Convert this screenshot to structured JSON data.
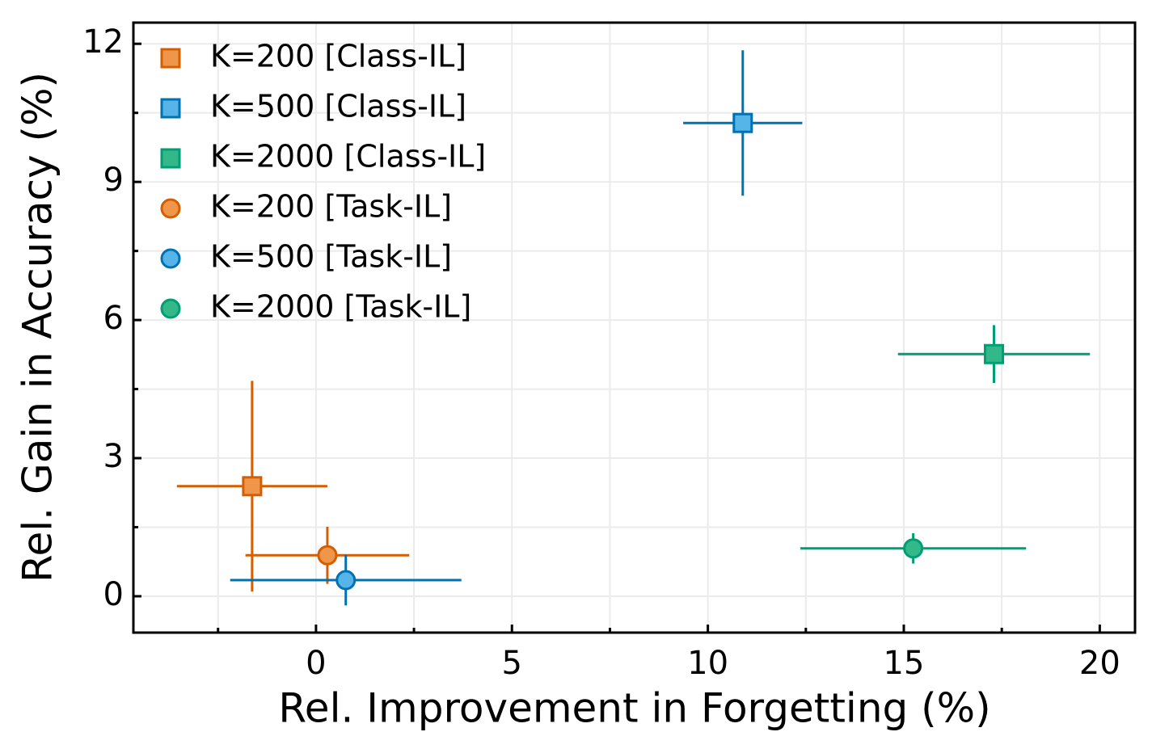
{
  "chart_data": {
    "type": "scatter",
    "x_label": "Rel. Improvement in Forgetting (%)",
    "y_label": "Rel. Gain in Accuracy (%)",
    "xlim": [
      -4.66,
      20.9
    ],
    "ylim": [
      -0.79,
      12.46
    ],
    "xticks": [
      0,
      5,
      10,
      15,
      20
    ],
    "yticks": [
      0,
      3,
      6,
      9,
      12
    ],
    "xminorticks": [
      -2.5,
      2.5,
      7.5,
      12.5,
      17.5
    ],
    "yminorticks": [
      1.5,
      4.5,
      7.5,
      10.5
    ],
    "grid": true,
    "legend": "upper left",
    "series": [
      {
        "name": "K=200 [Class-IL]",
        "color": "#d55e00",
        "fill": "#f0964b",
        "marker": "square",
        "x": [
          -1.63
        ],
        "values": [
          2.39
        ],
        "xerr": [
          1.92
        ],
        "yerr": [
          2.29
        ]
      },
      {
        "name": "K=500 [Class-IL]",
        "color": "#0072b2",
        "fill": "#56b4e9",
        "marker": "square",
        "x": [
          10.89
        ],
        "values": [
          10.28
        ],
        "xerr": [
          1.52
        ],
        "yerr": [
          1.58
        ]
      },
      {
        "name": "K=2000 [Class-IL]",
        "color": "#009e73",
        "fill": "#33b88a",
        "marker": "square",
        "x": [
          17.3
        ],
        "values": [
          5.26
        ],
        "xerr": [
          2.45
        ],
        "yerr": [
          0.63
        ]
      },
      {
        "name": "K=200 [Task-IL]",
        "color": "#d55e00",
        "fill": "#f0964b",
        "marker": "circle",
        "x": [
          0.29
        ],
        "values": [
          0.89
        ],
        "xerr": [
          2.09
        ],
        "yerr": [
          0.62
        ]
      },
      {
        "name": "K=500 [Task-IL]",
        "color": "#0072b2",
        "fill": "#56b4e9",
        "marker": "circle",
        "x": [
          0.76
        ],
        "values": [
          0.35
        ],
        "xerr": [
          2.95
        ],
        "yerr": [
          0.55
        ]
      },
      {
        "name": "K=2000 [Task-IL]",
        "color": "#009e73",
        "fill": "#33b88a",
        "marker": "circle",
        "x": [
          15.24
        ],
        "values": [
          1.04
        ],
        "xerr": [
          2.88
        ],
        "yerr": [
          0.33
        ]
      }
    ]
  }
}
